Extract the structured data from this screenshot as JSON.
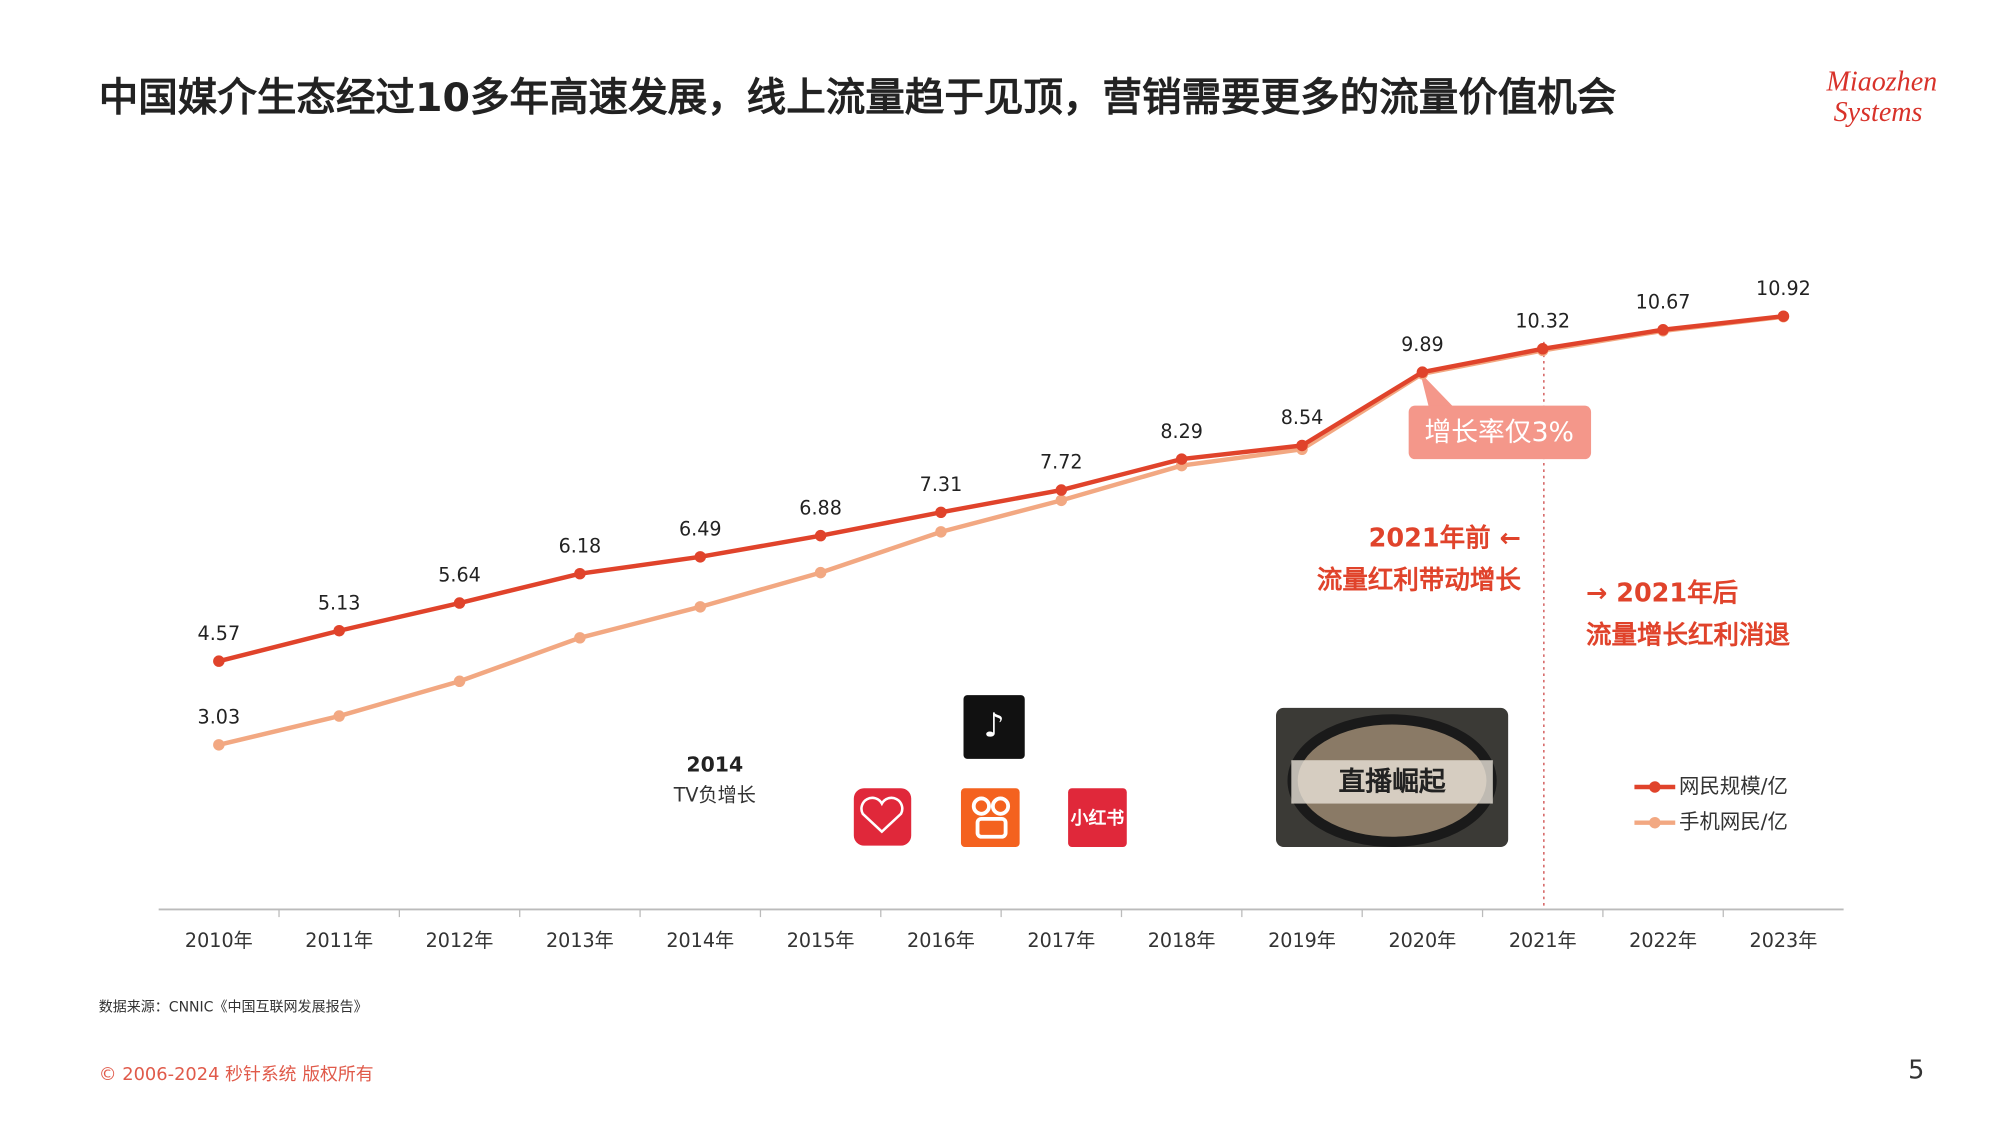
{
  "title": "中国媒介生态经过10多年高速发展，线上流量趋于见顶，营销需要更多的流量价值机会",
  "logo": [
    "Miaozhen",
    "Systems"
  ],
  "chart_data": {
    "type": "line",
    "categories": [
      "2010年",
      "2011年",
      "2012年",
      "2013年",
      "2014年",
      "2015年",
      "2016年",
      "2017年",
      "2018年",
      "2019年",
      "2020年",
      "2021年",
      "2022年",
      "2023年"
    ],
    "series": [
      {
        "name": "网民规模/亿",
        "color": "#e0432b",
        "values": [
          4.57,
          5.13,
          5.64,
          6.18,
          6.49,
          6.88,
          7.31,
          7.72,
          8.29,
          8.54,
          9.89,
          10.32,
          10.67,
          10.92
        ]
      },
      {
        "name": "手机网民/亿",
        "color": "#f2a882",
        "values": [
          3.03,
          3.56,
          4.2,
          5.0,
          5.57,
          6.2,
          6.95,
          7.53,
          8.17,
          8.47,
          9.86,
          10.29,
          10.65,
          10.91
        ]
      }
    ],
    "ylim": [
      0,
      13.5
    ],
    "annotations": {
      "callout": "增长率仅3%",
      "before_1": "2021年前 ←",
      "before_2": "流量红利带动增长",
      "after_1": "→ 2021年后",
      "after_2": "流量增长红利消退",
      "tv_year": "2014",
      "tv_text": "TV负增长",
      "live": "直播崛起",
      "xhs": "小红书"
    }
  },
  "source": "数据来源：CNNIC《中国互联网发展报告》",
  "footer": "© 2006-2024 秒针系统 版权所有",
  "page": "5"
}
